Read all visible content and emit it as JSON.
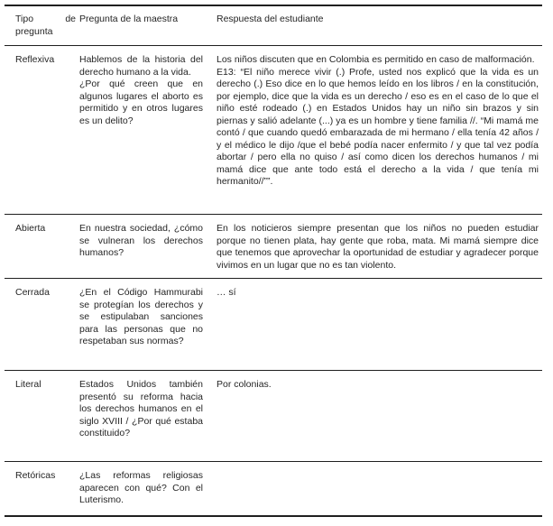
{
  "page": {
    "language": "es",
    "background_color": "#ffffff",
    "text_color": "#252525",
    "rule_color": "#1f1f1f"
  },
  "table": {
    "columns": [
      "Tipo de pregunta",
      "Pregunta de la maestra",
      "Respuesta del estudiante"
    ],
    "rows": [
      {
        "tipo": "Reflexiva",
        "pregunta": [
          "Hablemos de la historia del derecho humano a la vida.",
          "¿Por qué creen que en algunos lugares el aborto es permitido y en otros lugares es un delito?"
        ],
        "respuesta": [
          "Los niños discuten que en Colombia es permitido en caso de malformación.",
          "E13: “El niño merece vivir (.) Profe, usted nos explicó que la vida es un derecho (.) Eso dice en lo que hemos leído en los libros / en la constitución, por ejemplo, dice que la vida es un derecho / eso es en el caso de lo que el niño esté rodeado (.) en Estados Unidos hay un niño sin brazos y sin piernas y salió adelante (...) ya es un hombre y tiene familia //. “Mi mamá me contó / que cuando quedó embarazada de mi hermano / ella tenía 42 años / y el médico le dijo /que el bebé podía nacer enfermito / y que tal vez podía abortar / pero ella no quiso / así como dicen los derechos humanos / mi mamá dice que ante todo está el derecho a la vida / que tenía mi hermanito//””."
        ]
      },
      {
        "tipo": "Abierta",
        "pregunta": [
          "En nuestra sociedad, ¿cómo se vulneran los derechos humanos?"
        ],
        "respuesta": [
          "En los noticieros siempre presentan que los niños no pueden estudiar porque no tienen plata, hay gente que roba, mata. Mi mamá siempre dice que tenemos que aprovechar la oportunidad de estudiar y agradecer porque vivimos en un lugar que no es tan violento."
        ]
      },
      {
        "tipo": "Cerrada",
        "pregunta": [
          "¿En el Código Hammurabi se protegían los derechos y se estipulaban sanciones para las personas que no respetaban sus normas?"
        ],
        "respuesta": [
          "… sí"
        ]
      },
      {
        "tipo": "Literal",
        "pregunta": [
          "Estados Unidos también presentó su reforma hacia los derechos humanos en el siglo XVIII / ¿Por qué estaba constituido?"
        ],
        "respuesta": [
          "Por colonias."
        ]
      },
      {
        "tipo": "Retóricas",
        "pregunta": [
          "¿Las reformas religiosas aparecen con qué? Con el Luterismo."
        ],
        "respuesta": []
      }
    ]
  }
}
